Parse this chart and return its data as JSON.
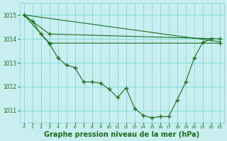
{
  "background_color": "#c8eef0",
  "grid_color": "#80d8d8",
  "line_color": "#1a6e1a",
  "xlabel": "Graphe pression niveau de la mer (hPa)",
  "xlabel_fontsize": 7,
  "xlim": [
    -0.5,
    23.5
  ],
  "ylim": [
    1010.5,
    1015.5
  ],
  "yticks": [
    1011,
    1012,
    1013,
    1014,
    1015
  ],
  "xticks": [
    0,
    1,
    2,
    3,
    4,
    5,
    6,
    7,
    8,
    9,
    10,
    11,
    12,
    13,
    14,
    15,
    16,
    17,
    18,
    19,
    20,
    21,
    22,
    23
  ],
  "main_x": [
    0,
    1,
    2,
    3,
    4,
    5,
    6,
    7,
    8,
    9,
    10,
    11,
    12,
    13,
    14,
    15,
    16,
    17,
    18,
    19,
    20,
    21,
    22
  ],
  "main_y": [
    1015.0,
    1014.75,
    1014.2,
    1013.8,
    1013.2,
    1012.9,
    1012.8,
    1012.2,
    1012.2,
    1012.15,
    1011.9,
    1011.55,
    1011.95,
    1011.1,
    1010.8,
    1010.7,
    1010.75,
    1010.75,
    1011.45,
    1012.2,
    1013.2,
    1013.85,
    1014.0
  ],
  "trend1_x": [
    0,
    23
  ],
  "trend1_y": [
    1015.0,
    1013.88
  ],
  "trend2_x": [
    0,
    3,
    23
  ],
  "trend2_y": [
    1015.0,
    1013.82,
    1013.82
  ],
  "trend3_x": [
    0,
    3,
    23
  ],
  "trend3_y": [
    1015.0,
    1014.2,
    1014.0
  ]
}
